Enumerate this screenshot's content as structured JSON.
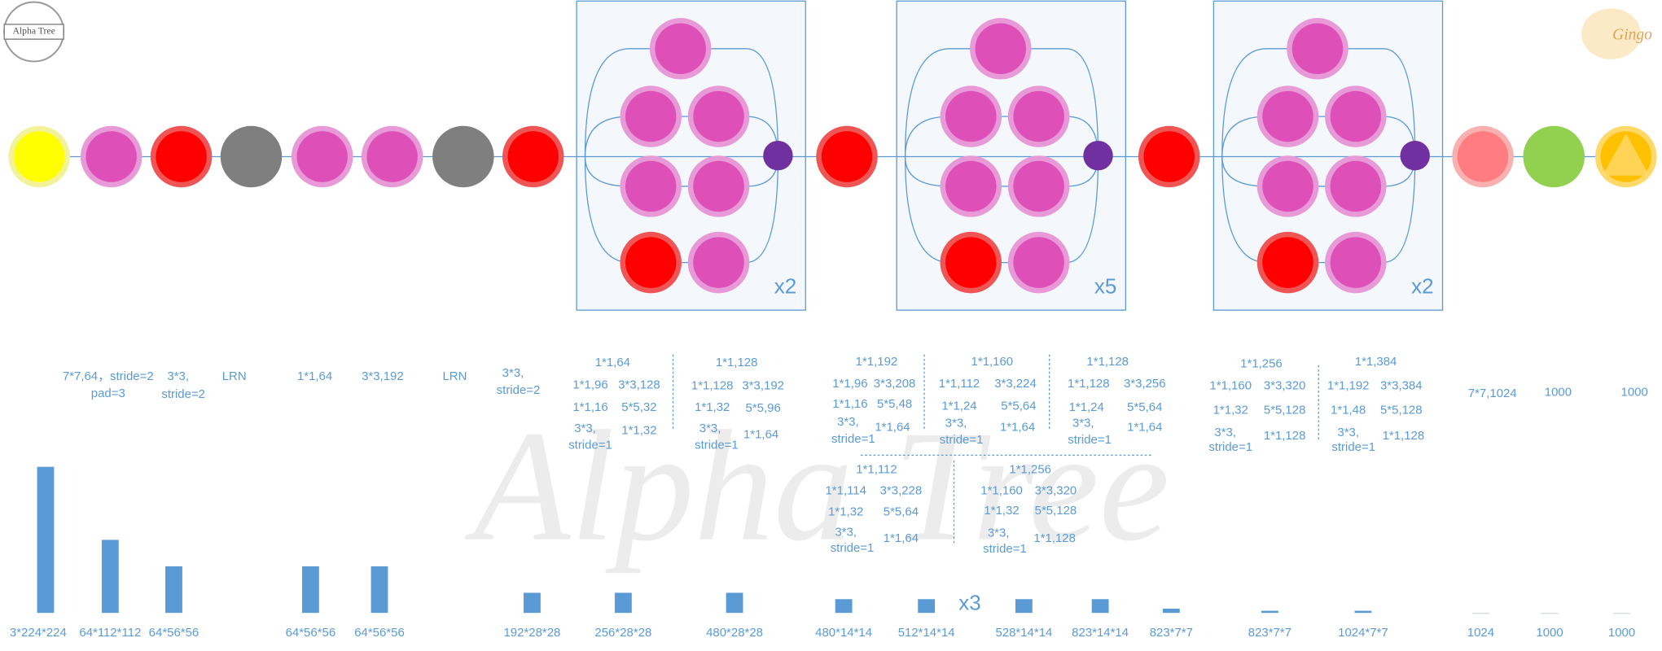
{
  "logo": "Alpha Tree",
  "brand": "Gingo",
  "watermark": "Alpha Tree",
  "repeats": [
    "x2",
    "x5",
    "x2"
  ],
  "params": [
    "7*7,64，stride=2",
    "pad=3",
    "3*3,",
    "stride=2",
    "LRN",
    "1*1,64",
    "3*3,192",
    "LRN",
    "3*3,",
    "stride=2",
    "1*1,64",
    "1*1,96",
    "3*3,128",
    "1*1,16",
    "5*5,32",
    "3*3,",
    "stride=1",
    "1*1,32",
    "1*1,128",
    "1*1,128",
    "3*3,192",
    "1*1,32",
    "5*5,96",
    "3*3,",
    "stride=1",
    "1*1,64",
    "1*1,192",
    "1*1,96",
    "3*3,208",
    "1*1,16",
    "5*5,48",
    "3*3,",
    "stride=1",
    "1*1,64",
    "1*1,160",
    "1*1,112",
    "3*3,224",
    "1*1,24",
    "5*5,64",
    "3*3,",
    "stride=1",
    "1*1,64",
    "1*1,128",
    "1*1,128",
    "3*3,256",
    "1*1,24",
    "5*5,64",
    "3*3,",
    "stride=1",
    "1*1,64",
    "1*1,112",
    "1*1,114",
    "3*3,228",
    "1*1,32",
    "5*5,64",
    "3*3,",
    "stride=1",
    "1*1,64",
    "1*1,256",
    "1*1,160",
    "3*3,320",
    "1*1,32",
    "5*5,128",
    "3*3,",
    "stride=1",
    "1*1,128",
    "1*1,256",
    "1*1,160",
    "3*3,320",
    "1*1,32",
    "5*5,128",
    "3*3,",
    "stride=1",
    "1*1,128",
    "1*1,384",
    "1*1,192",
    "3*3,384",
    "1*1,48",
    "5*5,128",
    "3*3,",
    "stride=1",
    "1*1,128",
    "7*7,1024",
    "1000",
    "1000"
  ],
  "shapes": [
    "3*224*224",
    "64*112*112",
    "64*56*56",
    "64*56*56",
    "64*56*56",
    "192*28*28",
    "256*28*28",
    "480*28*28",
    "480*14*14",
    "512*14*14",
    "528*14*14",
    "823*14*14",
    "823*7*7",
    "823*7*7",
    "1024*7*7",
    "1024",
    "1000",
    "1000"
  ],
  "shape_repeat": "x3"
}
